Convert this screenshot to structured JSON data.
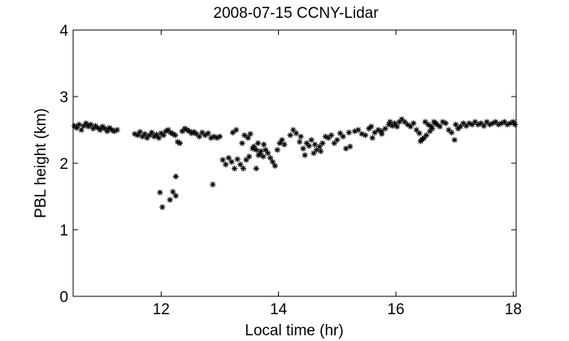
{
  "chart_data": {
    "type": "scatter",
    "title": "2008-07-15 CCNY-Lidar",
    "xlabel": "Local time (hr)",
    "ylabel": "PBL height (km)",
    "xlim": [
      10.5,
      18.05
    ],
    "ylim": [
      0,
      4
    ],
    "xticks": [
      12,
      14,
      16,
      18
    ],
    "yticks": [
      0,
      1,
      2,
      3,
      4
    ],
    "xtick_labels": [
      "12",
      "14",
      "16",
      "18"
    ],
    "ytick_labels": [
      "0",
      "1",
      "2",
      "3",
      "4"
    ],
    "grid": false,
    "marker": "asterisk",
    "color": "#000000",
    "points": [
      [
        10.52,
        2.56
      ],
      [
        10.56,
        2.53
      ],
      [
        10.6,
        2.58
      ],
      [
        10.64,
        2.5
      ],
      [
        10.68,
        2.56
      ],
      [
        10.72,
        2.6
      ],
      [
        10.76,
        2.55
      ],
      [
        10.8,
        2.58
      ],
      [
        10.84,
        2.52
      ],
      [
        10.88,
        2.56
      ],
      [
        10.92,
        2.53
      ],
      [
        10.96,
        2.5
      ],
      [
        11.0,
        2.55
      ],
      [
        11.04,
        2.52
      ],
      [
        11.08,
        2.48
      ],
      [
        11.12,
        2.53
      ],
      [
        11.16,
        2.5
      ],
      [
        11.2,
        2.48
      ],
      [
        11.25,
        2.5
      ],
      [
        11.55,
        2.44
      ],
      [
        11.6,
        2.42
      ],
      [
        11.64,
        2.47
      ],
      [
        11.68,
        2.4
      ],
      [
        11.72,
        2.44
      ],
      [
        11.76,
        2.38
      ],
      [
        11.8,
        2.42
      ],
      [
        11.84,
        2.46
      ],
      [
        11.88,
        2.4
      ],
      [
        11.92,
        2.43
      ],
      [
        11.96,
        2.38
      ],
      [
        12.0,
        2.45
      ],
      [
        12.04,
        2.42
      ],
      [
        12.08,
        2.48
      ],
      [
        12.12,
        2.5
      ],
      [
        12.16,
        2.46
      ],
      [
        12.2,
        2.44
      ],
      [
        12.24,
        2.42
      ],
      [
        12.28,
        2.32
      ],
      [
        12.32,
        2.3
      ],
      [
        12.36,
        2.48
      ],
      [
        12.4,
        2.52
      ],
      [
        12.44,
        2.5
      ],
      [
        12.48,
        2.48
      ],
      [
        12.52,
        2.45
      ],
      [
        12.56,
        2.47
      ],
      [
        12.6,
        2.44
      ],
      [
        12.65,
        2.4
      ],
      [
        12.7,
        2.46
      ],
      [
        12.75,
        2.42
      ],
      [
        12.8,
        2.45
      ],
      [
        12.85,
        2.38
      ],
      [
        12.9,
        2.4
      ],
      [
        12.95,
        2.38
      ],
      [
        13.0,
        2.4
      ],
      [
        11.98,
        1.56
      ],
      [
        12.02,
        1.34
      ],
      [
        12.15,
        1.45
      ],
      [
        12.2,
        1.57
      ],
      [
        12.25,
        1.8
      ],
      [
        12.88,
        1.68
      ],
      [
        12.25,
        1.51
      ],
      [
        13.05,
        2.05
      ],
      [
        13.1,
        1.98
      ],
      [
        13.15,
        2.08
      ],
      [
        13.2,
        2.02
      ],
      [
        13.25,
        1.92
      ],
      [
        13.3,
        2.06
      ],
      [
        13.35,
        1.98
      ],
      [
        13.4,
        1.92
      ],
      [
        13.45,
        2.05
      ],
      [
        13.5,
        2.1
      ],
      [
        13.22,
        2.46
      ],
      [
        13.28,
        2.5
      ],
      [
        13.42,
        2.42
      ],
      [
        13.48,
        2.38
      ],
      [
        13.52,
        2.44
      ],
      [
        13.38,
        2.3
      ],
      [
        13.58,
        2.25
      ],
      [
        13.62,
        2.2
      ],
      [
        13.66,
        2.12
      ],
      [
        13.7,
        2.18
      ],
      [
        13.74,
        2.1
      ],
      [
        13.78,
        2.2
      ],
      [
        13.82,
        2.15
      ],
      [
        13.86,
        2.08
      ],
      [
        13.9,
        2.02
      ],
      [
        13.94,
        1.96
      ],
      [
        13.98,
        2.2
      ],
      [
        13.65,
        2.3
      ],
      [
        13.75,
        2.28
      ],
      [
        13.62,
        1.92
      ],
      [
        13.68,
        2.14
      ],
      [
        13.56,
        2.22
      ],
      [
        14.02,
        2.3
      ],
      [
        14.06,
        2.35
      ],
      [
        14.1,
        2.28
      ],
      [
        14.2,
        2.42
      ],
      [
        14.25,
        2.5
      ],
      [
        14.3,
        2.45
      ],
      [
        14.36,
        2.32
      ],
      [
        14.42,
        2.22
      ],
      [
        14.48,
        2.3
      ],
      [
        14.52,
        2.26
      ],
      [
        14.56,
        2.35
      ],
      [
        14.6,
        2.15
      ],
      [
        14.65,
        2.2
      ],
      [
        14.7,
        2.25
      ],
      [
        14.75,
        2.3
      ],
      [
        14.8,
        2.4
      ],
      [
        14.85,
        2.38
      ],
      [
        14.9,
        2.42
      ],
      [
        14.95,
        2.3
      ],
      [
        15.0,
        2.35
      ],
      [
        14.72,
        2.18
      ],
      [
        14.62,
        2.28
      ],
      [
        14.38,
        2.4
      ],
      [
        14.45,
        2.12
      ],
      [
        15.05,
        2.45
      ],
      [
        15.1,
        2.4
      ],
      [
        15.15,
        2.22
      ],
      [
        15.22,
        2.25
      ],
      [
        15.3,
        2.48
      ],
      [
        15.36,
        2.5
      ],
      [
        15.42,
        2.44
      ],
      [
        15.48,
        2.42
      ],
      [
        15.54,
        2.52
      ],
      [
        15.6,
        2.38
      ],
      [
        15.64,
        2.46
      ],
      [
        15.7,
        2.5
      ],
      [
        15.76,
        2.44
      ],
      [
        15.82,
        2.52
      ],
      [
        15.88,
        2.58
      ],
      [
        15.94,
        2.56
      ],
      [
        15.98,
        2.6
      ],
      [
        16.02,
        2.55
      ],
      [
        16.06,
        2.62
      ],
      [
        16.1,
        2.66
      ],
      [
        16.15,
        2.62
      ],
      [
        16.2,
        2.58
      ],
      [
        16.25,
        2.55
      ],
      [
        16.3,
        2.6
      ],
      [
        16.35,
        2.5
      ],
      [
        16.4,
        2.45
      ],
      [
        16.42,
        2.33
      ],
      [
        16.48,
        2.38
      ],
      [
        16.5,
        2.62
      ],
      [
        16.55,
        2.58
      ],
      [
        16.6,
        2.55
      ],
      [
        16.65,
        2.62
      ],
      [
        16.7,
        2.58
      ],
      [
        16.75,
        2.55
      ],
      [
        16.8,
        2.62
      ],
      [
        16.85,
        2.6
      ],
      [
        16.9,
        2.5
      ],
      [
        16.95,
        2.46
      ],
      [
        17.0,
        2.35
      ],
      [
        17.02,
        2.58
      ],
      [
        17.06,
        2.52
      ],
      [
        17.1,
        2.55
      ],
      [
        17.15,
        2.6
      ],
      [
        17.2,
        2.56
      ],
      [
        17.25,
        2.6
      ],
      [
        17.3,
        2.58
      ],
      [
        17.35,
        2.62
      ],
      [
        17.4,
        2.58
      ],
      [
        17.45,
        2.6
      ],
      [
        17.5,
        2.56
      ],
      [
        17.55,
        2.62
      ],
      [
        17.6,
        2.58
      ],
      [
        17.65,
        2.6
      ],
      [
        17.7,
        2.62
      ],
      [
        17.75,
        2.58
      ],
      [
        17.8,
        2.6
      ],
      [
        17.85,
        2.62
      ],
      [
        17.9,
        2.58
      ],
      [
        17.95,
        2.6
      ],
      [
        18.0,
        2.62
      ],
      [
        18.03,
        2.58
      ],
      [
        16.58,
        2.48
      ],
      [
        16.62,
        2.52
      ],
      [
        16.68,
        2.6
      ],
      [
        15.75,
        2.48
      ],
      [
        15.2,
        2.46
      ],
      [
        15.58,
        2.55
      ],
      [
        15.9,
        2.62
      ],
      [
        16.52,
        2.42
      ],
      [
        16.45,
        2.36
      ]
    ]
  }
}
